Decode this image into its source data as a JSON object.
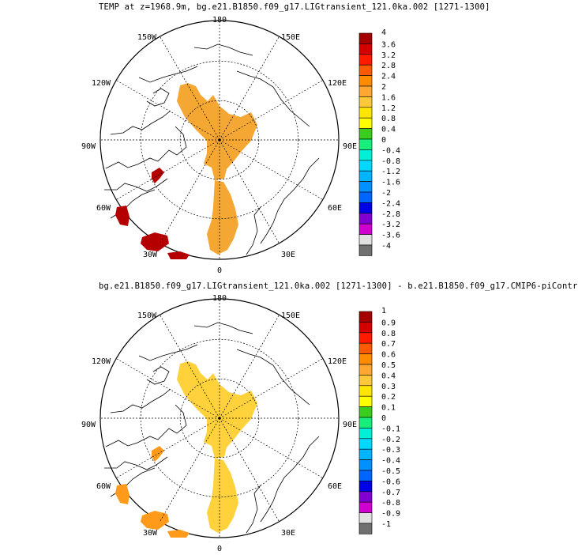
{
  "panels": [
    {
      "title": "TEMP at z=1968.9m, bg.e21.B1850.f09_g17.LIGtransient_121.0ka.002 [1271-1300]",
      "lon_labels": [
        "180",
        "150E",
        "120E",
        "90E",
        "60E",
        "30E",
        "0",
        "30W",
        "60W",
        "90W",
        "120W",
        "150W"
      ],
      "colorbar": {
        "labels": [
          "4",
          "3.6",
          "3.2",
          "2.8",
          "2.4",
          "2",
          "1.6",
          "1.2",
          "0.8",
          "0.4",
          "0",
          "-0.4",
          "-0.8",
          "-1.2",
          "-1.6",
          "-2",
          "-2.4",
          "-2.8",
          "-3.2",
          "-3.6",
          "-4"
        ],
        "colors": [
          "#a50000",
          "#d40000",
          "#ff1a00",
          "#ff5a00",
          "#ff8c00",
          "#ffa733",
          "#ffc83a",
          "#ffe600",
          "#ffff00",
          "#3ccc1e",
          "#16f07a",
          "#00f0d8",
          "#00d8ff",
          "#00b4ff",
          "#0090ff",
          "#0064ff",
          "#0000e6",
          "#7f00d0",
          "#d000d0",
          "#e0e0e0",
          "#707070"
        ]
      },
      "fill_color": "#f5a733",
      "hot_color": "#b50000"
    },
    {
      "title": "bg.e21.B1850.f09_g17.LIGtransient_121.0ka.002 [1271-1300] - b.e21.B1850.f09_g17.CMIP6-piContr",
      "lon_labels": [
        "180",
        "150E",
        "120E",
        "90E",
        "60E",
        "30E",
        "0",
        "30W",
        "60W",
        "90W",
        "120W",
        "150W"
      ],
      "colorbar": {
        "labels": [
          "1",
          "0.9",
          "0.8",
          "0.7",
          "0.6",
          "0.5",
          "0.4",
          "0.3",
          "0.2",
          "0.1",
          "0",
          "-0.1",
          "-0.2",
          "-0.3",
          "-0.4",
          "-0.5",
          "-0.6",
          "-0.7",
          "-0.8",
          "-0.9",
          "-1"
        ],
        "colors": [
          "#a50000",
          "#d40000",
          "#ff1a00",
          "#ff5a00",
          "#ff8c00",
          "#ffa733",
          "#ffc83a",
          "#ffe600",
          "#ffff00",
          "#3ccc1e",
          "#16f07a",
          "#00f0d8",
          "#00d8ff",
          "#00b4ff",
          "#0090ff",
          "#0064ff",
          "#0000e6",
          "#7f00d0",
          "#d000d0",
          "#e0e0e0",
          "#707070"
        ]
      },
      "fill_color": "#ffd23c",
      "hot_color": "#ff9a1a"
    }
  ]
}
